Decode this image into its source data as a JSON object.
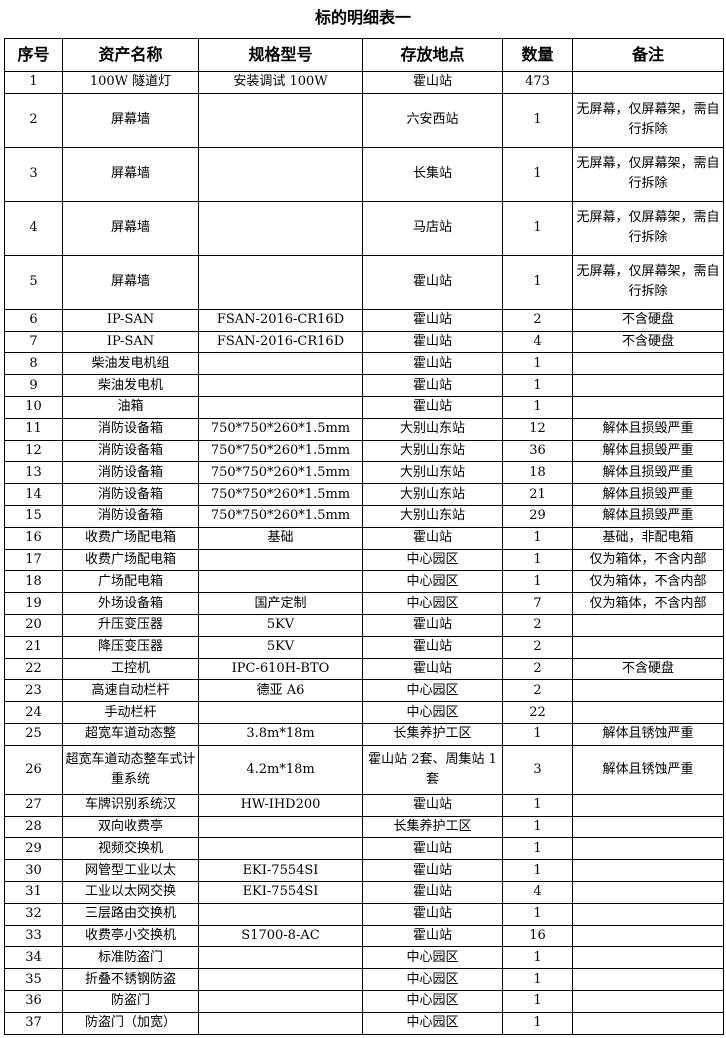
{
  "title": "标的明细表一",
  "table": {
    "header": [
      "序号",
      "资产名称",
      "规格型号",
      "存放地点",
      "数量",
      "备注"
    ],
    "rows": [
      [
        1,
        "100W 隧道灯",
        "安装调试 100W",
        "霍山站",
        473,
        null
      ],
      [
        2,
        "屏幕墙",
        null,
        "六安西站",
        1,
        "无屏幕，仅屏幕架，需自行拆除"
      ],
      [
        3,
        "屏幕墙",
        null,
        "长集站",
        1,
        "无屏幕，仅屏幕架，需自行拆除"
      ],
      [
        4,
        "屏幕墙",
        null,
        "马店站",
        1,
        "无屏幕，仅屏幕架，需自行拆除"
      ],
      [
        5,
        "屏幕墙",
        null,
        "霍山站",
        1,
        "无屏幕，仅屏幕架，需自行拆除"
      ],
      [
        6,
        "IP-SAN",
        "FSAN-2016-CR16D",
        "霍山站",
        2,
        "不含硬盘"
      ],
      [
        7,
        "IP-SAN",
        "FSAN-2016-CR16D",
        "霍山站",
        4,
        "不含硬盘"
      ],
      [
        8,
        "柴油发电机组",
        null,
        "霍山站",
        1,
        null
      ],
      [
        9,
        "柴油发电机",
        null,
        "霍山站",
        1,
        null
      ],
      [
        10,
        "油箱",
        null,
        "霍山站",
        1,
        null
      ],
      [
        11,
        "消防设备箱",
        "750*750*260*1.5mm",
        "大别山东站",
        12,
        "解体且损毁严重"
      ],
      [
        12,
        "消防设备箱",
        "750*750*260*1.5mm",
        "大别山东站",
        36,
        "解体且损毁严重"
      ],
      [
        13,
        "消防设备箱",
        "750*750*260*1.5mm",
        "大别山东站",
        18,
        "解体且损毁严重"
      ],
      [
        14,
        "消防设备箱",
        "750*750*260*1.5mm",
        "大别山东站",
        21,
        "解体且损毁严重"
      ],
      [
        15,
        "消防设备箱",
        "750*750*260*1.5mm",
        "大别山东站",
        29,
        "解体且损毁严重"
      ],
      [
        16,
        "收费广场配电箱",
        "基础",
        "霍山站",
        1,
        "基础，非配电箱"
      ],
      [
        17,
        "收费广场配电箱",
        null,
        "中心园区",
        1,
        "仅为箱体，不含内部"
      ],
      [
        18,
        "广场配电箱",
        null,
        "中心园区",
        1,
        "仅为箱体，不含内部"
      ],
      [
        19,
        "外场设备箱",
        "国产定制",
        "中心园区",
        7,
        "仅为箱体，不含内部"
      ],
      [
        20,
        "升压变压器",
        "5KV",
        "霍山站",
        2,
        null
      ],
      [
        21,
        "降压变压器",
        "5KV",
        "霍山站",
        2,
        null
      ],
      [
        22,
        "工控机",
        "IPC-610H-BTO",
        "霍山站",
        2,
        "不含硬盘"
      ],
      [
        23,
        "高速自动栏杆",
        "德亚 A6",
        "中心园区",
        2,
        null
      ],
      [
        24,
        "手动栏杆",
        null,
        "中心园区",
        22,
        null
      ],
      [
        25,
        "超宽车道动态整",
        "3.8m*18m",
        "长集养护工区",
        1,
        "解体且锈蚀严重"
      ],
      [
        26,
        "超宽车道动态整车式计重系统",
        "4.2m*18m",
        "霍山站 2套、周集站 1套",
        3,
        "解体且锈蚀严重"
      ],
      [
        27,
        "车牌识别系统汉",
        "HW-IHD200",
        "霍山站",
        1,
        null
      ],
      [
        28,
        "双向收费亭",
        null,
        "长集养护工区",
        1,
        null
      ],
      [
        29,
        "视频交换机",
        null,
        "霍山站",
        1,
        null
      ],
      [
        30,
        "网管型工业以太",
        "EKI-7554SI",
        "霍山站",
        1,
        null
      ],
      [
        31,
        "工业以太网交换",
        "EKI-7554SI",
        "霍山站",
        4,
        null
      ],
      [
        32,
        "三层路由交换机",
        null,
        "霍山站",
        1,
        null
      ],
      [
        33,
        "收费亭小交换机",
        "S1700-8-AC",
        "霍山站",
        16,
        null
      ],
      [
        34,
        "标准防盗门",
        null,
        "中心园区",
        1,
        null
      ],
      [
        35,
        "折叠不锈钢防盗",
        null,
        "中心园区",
        1,
        null
      ],
      [
        36,
        "防盗门",
        null,
        "中心园区",
        1,
        null
      ],
      [
        37,
        "防盗门（加宽）",
        null,
        "中心园区",
        1,
        null
      ]
    ]
  }
}
